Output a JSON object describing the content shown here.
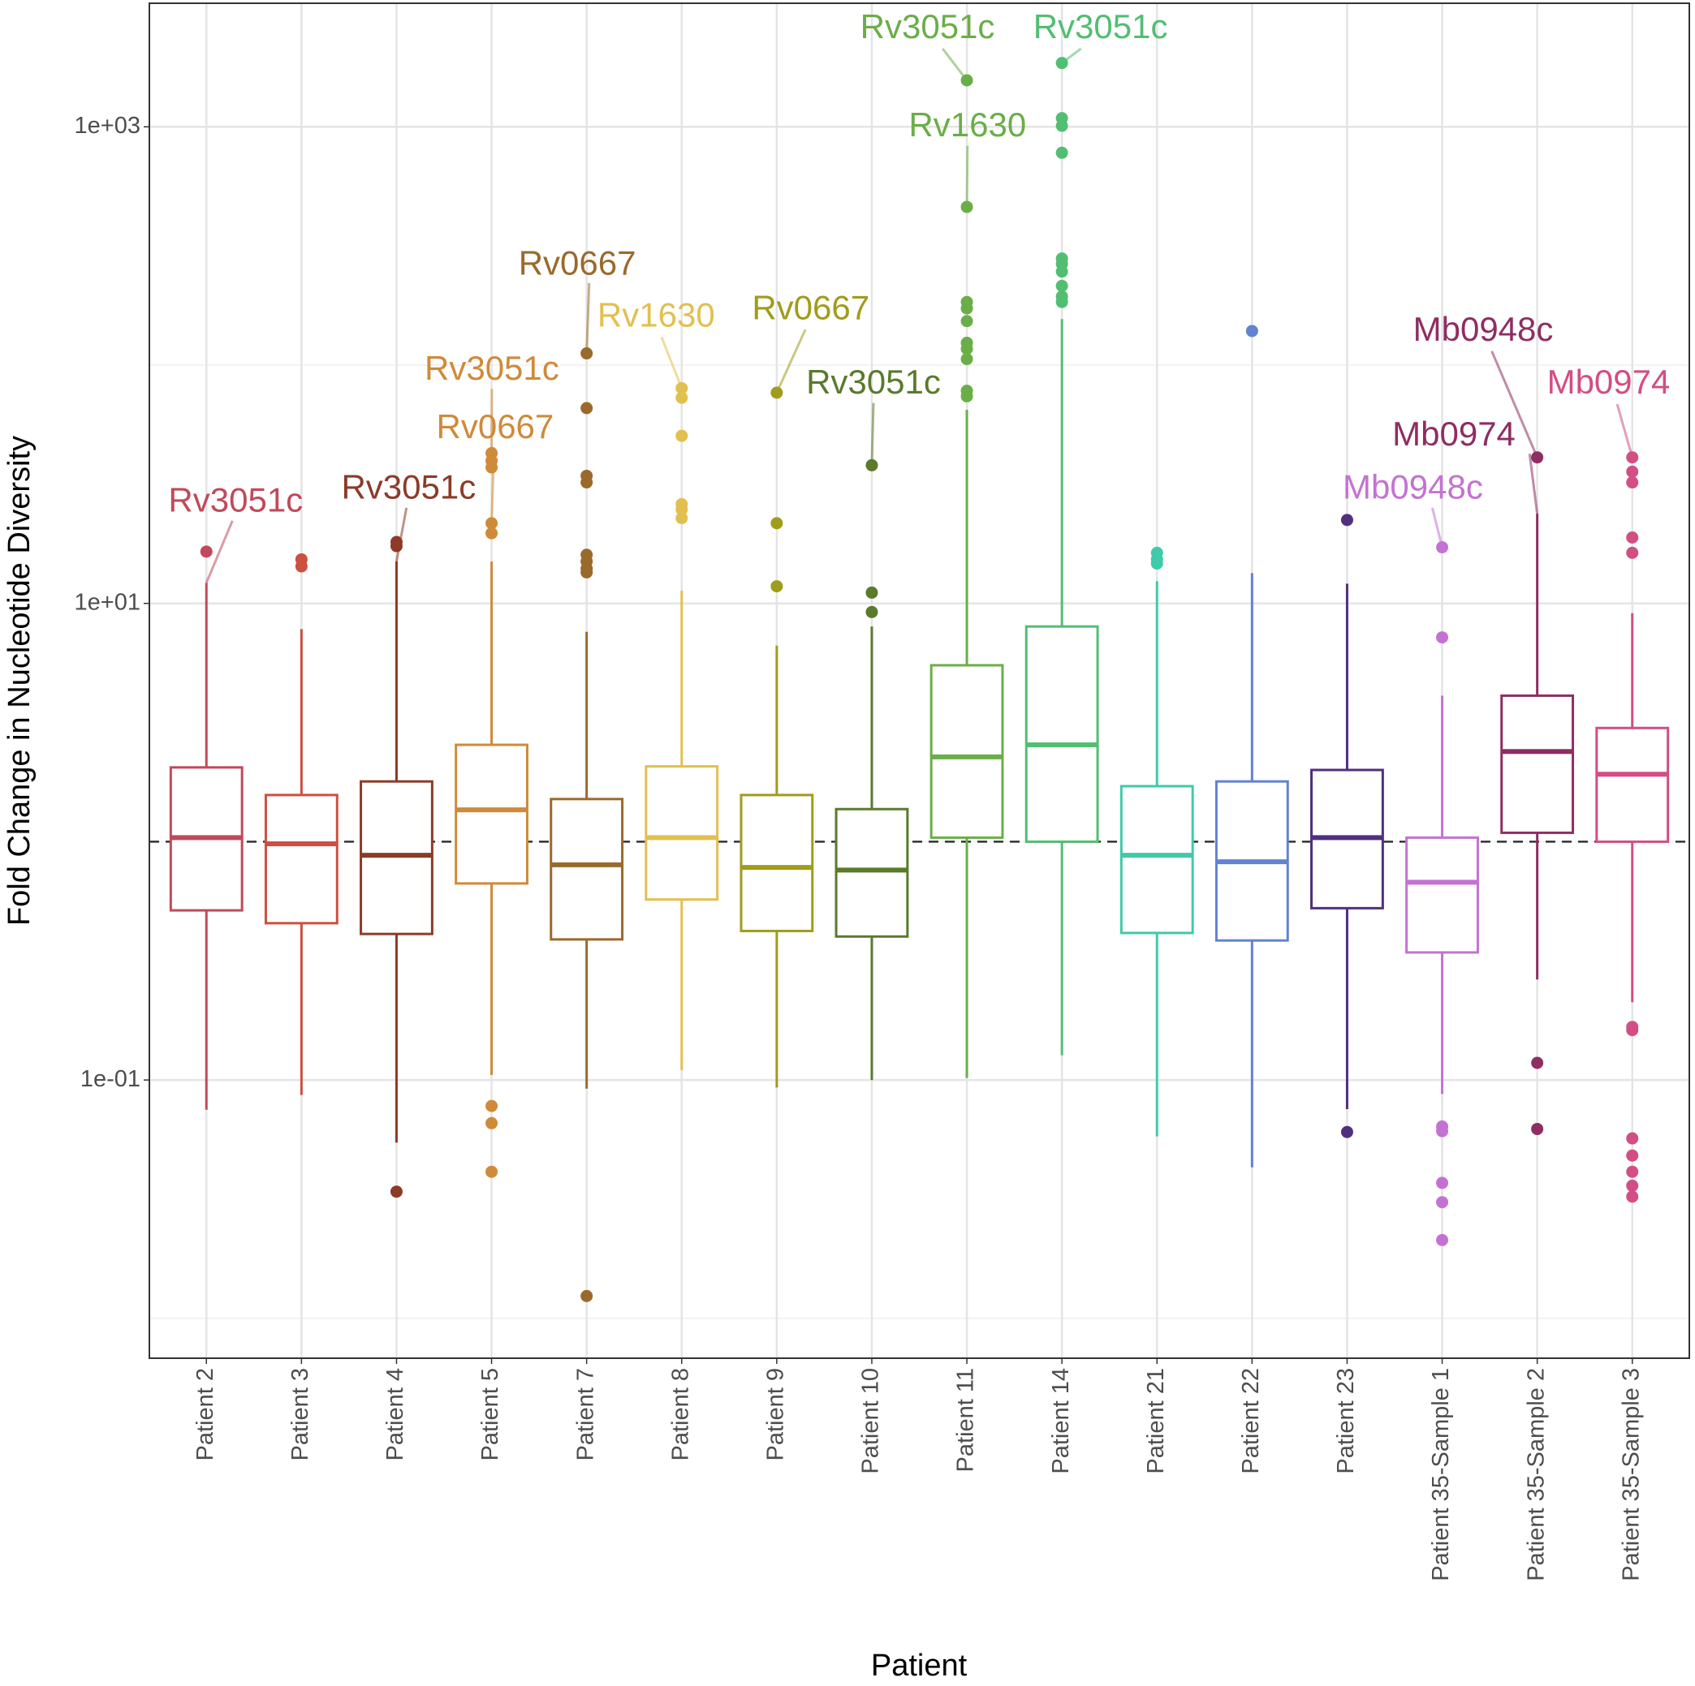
{
  "chart_data": {
    "type": "box",
    "xlabel": "Patient",
    "ylabel": "Fold Change in Nucleotide Diversity",
    "log_y": true,
    "grid": true,
    "ylim": [
      0.0068,
      3300
    ],
    "yticks": [
      {
        "value": 1000,
        "label": "1e+03"
      },
      {
        "value": 10,
        "label": "1e+01"
      },
      {
        "value": 0.1,
        "label": "1e-01"
      }
    ],
    "yminor": [
      100,
      1,
      0.01
    ],
    "hline": 1,
    "categories": [
      "Patient 2",
      "Patient 3",
      "Patient 4",
      "Patient 5",
      "Patient 7",
      "Patient 8",
      "Patient 9",
      "Patient 10",
      "Patient 11",
      "Patient 14",
      "Patient 21",
      "Patient 22",
      "Patient 23",
      "Patient 35-Sample 1",
      "Patient 35-Sample 2",
      "Patient 35-Sample 3"
    ],
    "boxes": [
      {
        "color": "#c04a5a",
        "whisker_low": 0.075,
        "q1": 0.515,
        "median": 1.04,
        "q3": 2.05,
        "whisker_high": 12.2,
        "outliers": [
          16.5
        ]
      },
      {
        "color": "#cc5040",
        "whisker_low": 0.0865,
        "q1": 0.455,
        "median": 0.98,
        "q3": 1.57,
        "whisker_high": 7.8,
        "outliers": [
          15.3,
          14.3
        ]
      },
      {
        "color": "#8c3b28",
        "whisker_low": 0.0546,
        "q1": 0.41,
        "median": 0.877,
        "q3": 1.79,
        "whisker_high": 15.0,
        "outliers": [
          18.1,
          17.4,
          0.034
        ]
      },
      {
        "color": "#cf8a3a",
        "whisker_low": 0.105,
        "q1": 0.668,
        "median": 1.36,
        "q3": 2.55,
        "whisker_high": 15.0,
        "outliers": [
          42.7,
          39.7,
          37.2,
          21.7,
          19.7,
          0.0778,
          0.0659,
          0.0412
        ]
      },
      {
        "color": "#9a6a2c",
        "whisker_low": 0.092,
        "q1": 0.389,
        "median": 0.8,
        "q3": 1.51,
        "whisker_high": 7.6,
        "outliers": [
          112,
          66,
          34.3,
          32.2,
          16,
          15,
          14,
          13.5,
          0.0124
        ]
      },
      {
        "color": "#e2c050",
        "whisker_low": 0.11,
        "q1": 0.572,
        "median": 1.04,
        "q3": 2.07,
        "whisker_high": 11.3,
        "outliers": [
          80,
          73,
          50.5,
          26.1,
          24.8,
          22.8
        ]
      },
      {
        "color": "#a09c1c",
        "whisker_low": 0.093,
        "q1": 0.422,
        "median": 0.78,
        "q3": 1.57,
        "whisker_high": 6.65,
        "outliers": [
          76.6,
          21.7,
          11.8
        ]
      },
      {
        "color": "#5a7a2c",
        "whisker_low": 0.1,
        "q1": 0.4,
        "median": 0.76,
        "q3": 1.37,
        "whisker_high": 8.0,
        "outliers": [
          38,
          11.1,
          9.2
        ]
      },
      {
        "color": "#6aae48",
        "whisker_low": 0.102,
        "q1": 1.04,
        "median": 2.27,
        "q3": 5.5,
        "whisker_high": 64.9,
        "outliers": [
          1567,
          461,
          184,
          173,
          153,
          124,
          117,
          106,
          78,
          74
        ]
      },
      {
        "color": "#52be72",
        "whisker_low": 0.127,
        "q1": 1.0,
        "median": 2.55,
        "q3": 8.0,
        "whisker_high": 156,
        "outliers": [
          1852,
          1087,
          1010,
          778,
          280,
          266,
          247,
          215,
          194,
          184
        ]
      },
      {
        "color": "#3fcaa8",
        "whisker_low": 0.058,
        "q1": 0.414,
        "median": 0.877,
        "q3": 1.71,
        "whisker_high": 12.4,
        "outliers": [
          16.3,
          15.3,
          14.7
        ]
      },
      {
        "color": "#6282d2",
        "whisker_low": 0.043,
        "q1": 0.385,
        "median": 0.824,
        "q3": 1.79,
        "whisker_high": 13.4,
        "outliers": [
          139
        ]
      },
      {
        "color": "#50307e",
        "whisker_low": 0.0755,
        "q1": 0.526,
        "median": 1.04,
        "q3": 2.0,
        "whisker_high": 12.1,
        "outliers": [
          22.4,
          0.0605
        ]
      },
      {
        "color": "#c472d2",
        "whisker_low": 0.0873,
        "q1": 0.343,
        "median": 0.676,
        "q3": 1.04,
        "whisker_high": 4.1,
        "outliers": [
          17.2,
          7.2,
          0.0638,
          0.061,
          0.037,
          0.0307,
          0.0213
        ]
      },
      {
        "color": "#8e2e62",
        "whisker_low": 0.264,
        "q1": 1.09,
        "median": 2.39,
        "q3": 4.1,
        "whisker_high": 23.8,
        "outliers": [
          41,
          0.118,
          0.0623
        ]
      },
      {
        "color": "#d24e84",
        "whisker_low": 0.212,
        "q1": 1.0,
        "median": 1.92,
        "q3": 3.0,
        "whisker_high": 9.1,
        "outliers": [
          41,
          35.7,
          32.2,
          18.9,
          16.3,
          0.167,
          0.162,
          0.0569,
          0.0482,
          0.0412,
          0.036,
          0.0324
        ]
      }
    ],
    "annotations": [
      "Rv3051c",
      "Rv3051c",
      "Rv3051c",
      "Rv0667",
      "Rv0667",
      "Rv1630",
      "Rv0667",
      "Rv3051c",
      "Rv3051c",
      "Rv1630",
      "Rv3051c",
      "Mb0948c",
      "Mb0974",
      "Mb0948c",
      "Mb0974"
    ]
  }
}
